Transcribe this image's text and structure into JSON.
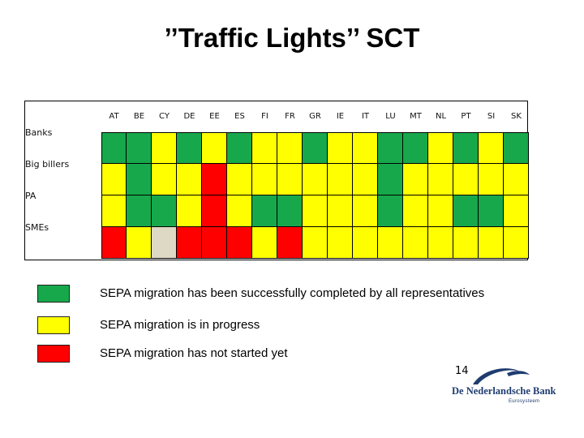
{
  "title": "’’Traffic Lights’’ SCT",
  "columns": [
    "AT",
    "BE",
    "CY",
    "DE",
    "EE",
    "ES",
    "FI",
    "FR",
    "GR",
    "IE",
    "IT",
    "LU",
    "MT",
    "NL",
    "PT",
    "SI",
    "SK"
  ],
  "rows": [
    {
      "label": "Banks",
      "statuses": [
        "green",
        "green",
        "yellow",
        "green",
        "yellow",
        "green",
        "yellow",
        "yellow",
        "green",
        "yellow",
        "yellow",
        "green",
        "green",
        "yellow",
        "green",
        "yellow",
        "green"
      ]
    },
    {
      "label": "Big billers",
      "statuses": [
        "yellow",
        "green",
        "yellow",
        "yellow",
        "red",
        "yellow",
        "yellow",
        "yellow",
        "yellow",
        "yellow",
        "yellow",
        "green",
        "yellow",
        "yellow",
        "yellow",
        "yellow",
        "yellow"
      ]
    },
    {
      "label": "PA",
      "statuses": [
        "yellow",
        "green",
        "green",
        "yellow",
        "red",
        "yellow",
        "green",
        "green",
        "yellow",
        "yellow",
        "yellow",
        "green",
        "yellow",
        "yellow",
        "green",
        "green",
        "yellow"
      ]
    },
    {
      "label": "SMEs",
      "statuses": [
        "red",
        "yellow",
        "beige",
        "red",
        "red",
        "red",
        "yellow",
        "red",
        "yellow",
        "yellow",
        "yellow",
        "yellow",
        "yellow",
        "yellow",
        "yellow",
        "yellow",
        "yellow"
      ]
    }
  ],
  "status_colors": {
    "green": "#17a84b",
    "yellow": "#ffff00",
    "red": "#ff0000",
    "beige": "#ddd9c4"
  },
  "legend": [
    {
      "status": "green",
      "text": "SEPA migration has been successfully completed by all representatives"
    },
    {
      "status": "yellow",
      "text": "SEPA migration is in progress"
    },
    {
      "status": "red",
      "text": "SEPA migration has not started yet"
    }
  ],
  "page_number": "14",
  "logo": {
    "name": "De Nederlandsche Bank",
    "subtitle": "Eurosysteem",
    "icon": "dnb-swoosh-logo"
  }
}
